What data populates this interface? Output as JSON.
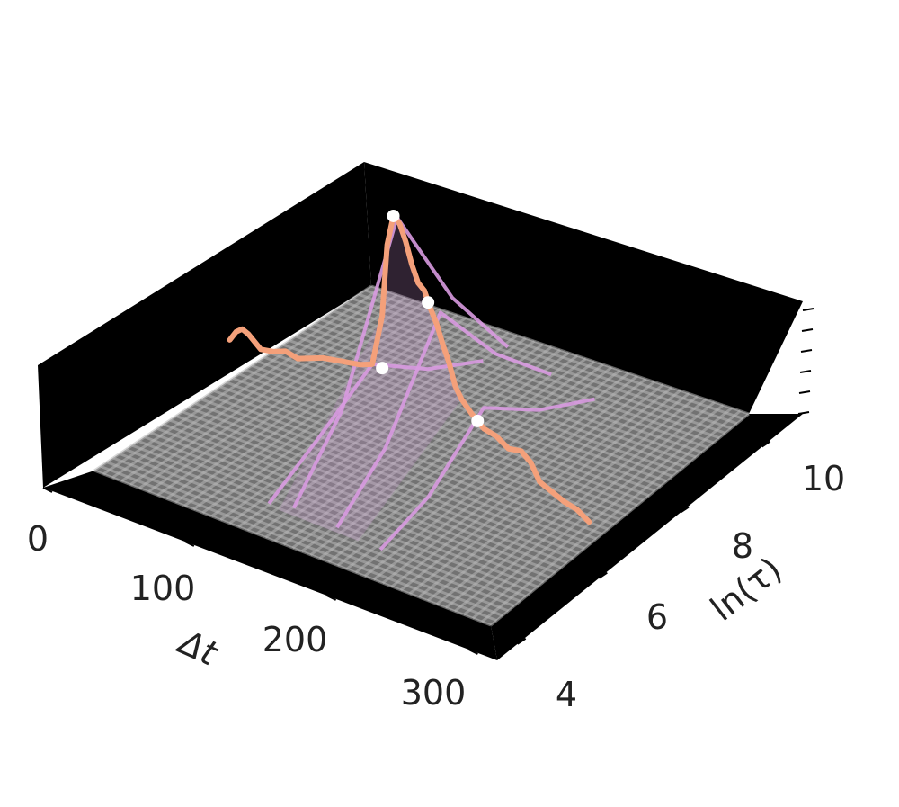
{
  "chart_data": {
    "type": "line",
    "projection": "3d",
    "xlabel": "Δt",
    "ylabel": "ln(τ)",
    "zlabel": "",
    "x_ticks": [
      "0",
      "100",
      "200",
      "300"
    ],
    "y_ticks": [
      "4",
      "6",
      "8",
      "10"
    ],
    "z_tick_count": 6,
    "xlim": [
      0,
      320
    ],
    "ylim": [
      3.5,
      11
    ],
    "floor_grid": true,
    "pane_color": "#000000",
    "series": [
      {
        "style": "main-curve",
        "color": "#f4a07a",
        "points": [
          [
            5,
            7.0,
            0.18
          ],
          [
            10,
            7.0,
            0.22
          ],
          [
            15,
            7.0,
            0.24
          ],
          [
            20,
            7.0,
            0.23
          ],
          [
            25,
            7.0,
            0.21
          ],
          [
            30,
            7.0,
            0.19
          ],
          [
            40,
            7.0,
            0.2
          ],
          [
            50,
            7.0,
            0.22
          ],
          [
            60,
            7.0,
            0.21
          ],
          [
            70,
            7.0,
            0.23
          ],
          [
            80,
            7.0,
            0.25
          ],
          [
            90,
            7.0,
            0.26
          ],
          [
            100,
            7.0,
            0.27
          ],
          [
            110,
            7.0,
            0.28
          ],
          [
            120,
            7.0,
            0.3
          ],
          [
            128,
            7.0,
            0.5
          ],
          [
            132,
            7.0,
            0.78
          ],
          [
            137,
            7.0,
            0.9
          ],
          [
            142,
            7.0,
            0.88
          ],
          [
            147,
            7.0,
            0.82
          ],
          [
            152,
            7.0,
            0.74
          ],
          [
            157,
            7.0,
            0.68
          ],
          [
            162,
            7.0,
            0.66
          ],
          [
            167,
            7.0,
            0.6
          ],
          [
            172,
            7.0,
            0.55
          ],
          [
            177,
            7.0,
            0.48
          ],
          [
            182,
            7.0,
            0.42
          ],
          [
            187,
            7.0,
            0.34
          ],
          [
            192,
            7.0,
            0.3
          ],
          [
            200,
            7.0,
            0.26
          ],
          [
            210,
            7.0,
            0.22
          ],
          [
            220,
            7.0,
            0.21
          ],
          [
            230,
            7.0,
            0.18
          ],
          [
            240,
            7.0,
            0.19
          ],
          [
            248,
            7.0,
            0.16
          ],
          [
            255,
            7.0,
            0.1
          ],
          [
            265,
            7.0,
            0.08
          ],
          [
            275,
            7.0,
            0.06
          ],
          [
            285,
            7.0,
            0.05
          ],
          [
            295,
            7.0,
            0.02
          ]
        ]
      },
      {
        "style": "slice",
        "color": "#d89ae0",
        "points": [
          [
            140,
            4.2,
            0.05
          ],
          [
            140,
            5.5,
            0.3
          ],
          [
            140,
            7.0,
            0.9
          ],
          [
            140,
            8.5,
            0.45
          ],
          [
            140,
            10.0,
            0.12
          ]
        ]
      },
      {
        "style": "slice",
        "color": "#d89ae0",
        "points": [
          [
            175,
            4.2,
            0.04
          ],
          [
            175,
            5.5,
            0.22
          ],
          [
            175,
            7.0,
            0.6
          ],
          [
            175,
            8.5,
            0.3
          ],
          [
            175,
            10.0,
            0.08
          ]
        ]
      },
      {
        "style": "slice",
        "color": "#d89ae0",
        "points": [
          [
            210,
            4.2,
            0.02
          ],
          [
            210,
            5.5,
            0.1
          ],
          [
            210,
            7.0,
            0.3
          ],
          [
            210,
            8.5,
            0.15
          ],
          [
            210,
            10.0,
            0.05
          ]
        ]
      },
      {
        "style": "slice",
        "color": "#d89ae0",
        "points": [
          [
            120,
            4.2,
            0.03
          ],
          [
            120,
            5.5,
            0.15
          ],
          [
            120,
            7.0,
            0.3
          ],
          [
            120,
            8.5,
            0.14
          ],
          [
            120,
            10.0,
            0.03
          ]
        ]
      }
    ],
    "markers": [
      {
        "x": 128,
        "y": 7.0,
        "z": 0.3
      },
      {
        "x": 137,
        "y": 7.0,
        "z": 0.9
      },
      {
        "x": 165,
        "y": 7.0,
        "z": 0.62
      },
      {
        "x": 205,
        "y": 7.0,
        "z": 0.24
      }
    ]
  },
  "colors": {
    "pane": "#000000",
    "floor": "#6a6a6a",
    "grid": "#b8b8b8",
    "curve": "#f4a07a",
    "slice": "#d89ae0",
    "marker": "#ffffff",
    "text": "#222222"
  }
}
